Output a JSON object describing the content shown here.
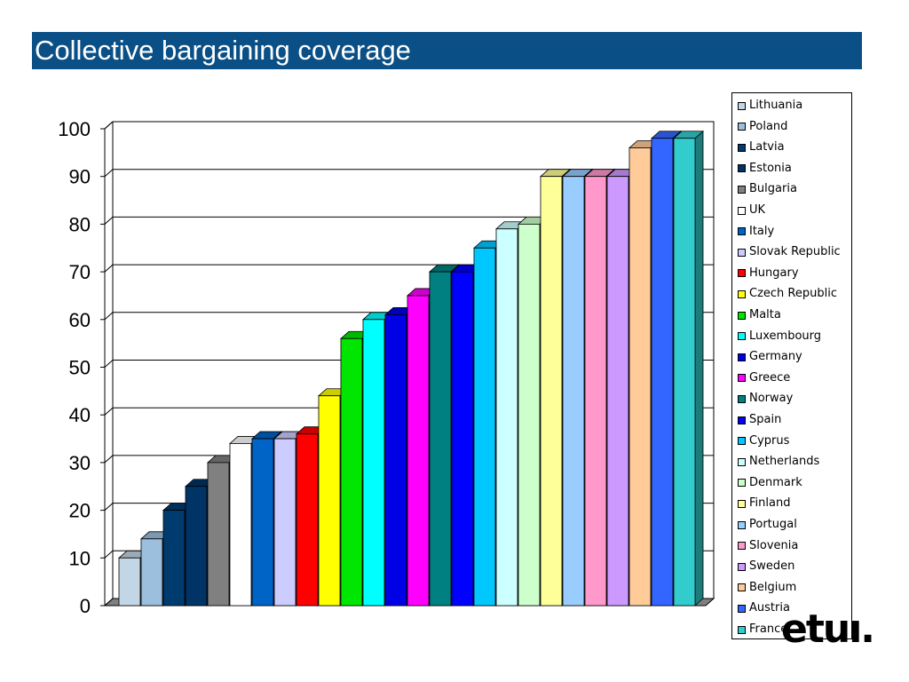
{
  "title": "Collective bargaining coverage",
  "logo_text": "etuı.",
  "chart_data": {
    "type": "bar",
    "style": "3d",
    "title": "Collective bargaining coverage",
    "xlabel": "",
    "ylabel": "",
    "ylim": [
      0,
      100
    ],
    "yticks": [
      0,
      10,
      20,
      30,
      40,
      50,
      60,
      70,
      80,
      90,
      100
    ],
    "grid": true,
    "legend": "right",
    "categories": [
      "Lithuania",
      "Poland",
      "Latvia",
      "Estonia",
      "Bulgaria",
      "UK",
      "Italy",
      "Slovak Republic",
      "Hungary",
      "Czech Republic",
      "Malta",
      "Luxembourg",
      "Germany",
      "Greece",
      "Norway",
      "Spain",
      "Cyprus",
      "Netherlands",
      "Denmark",
      "Finland",
      "Portugal",
      "Slovenia",
      "Sweden",
      "Belgium",
      "Austria",
      "France"
    ],
    "values": [
      10,
      14,
      20,
      25,
      30,
      34,
      35,
      35,
      36,
      44,
      56,
      60,
      61,
      65,
      70,
      70,
      75,
      79,
      80,
      90,
      90,
      90,
      90,
      96,
      98,
      98
    ],
    "colors": [
      "#c3d6e6",
      "#9bbfdd",
      "#003b6f",
      "#003366",
      "#808080",
      "#ffffff",
      "#0063c6",
      "#ccccff",
      "#ff0000",
      "#ffff00",
      "#00e600",
      "#00ffff",
      "#0000e6",
      "#ff00ff",
      "#008080",
      "#0000ff",
      "#00c8ff",
      "#ccffff",
      "#ccffcc",
      "#ffff99",
      "#99ccff",
      "#ff99cc",
      "#cc99ff",
      "#ffcc99",
      "#3366ff",
      "#33cccc"
    ]
  }
}
